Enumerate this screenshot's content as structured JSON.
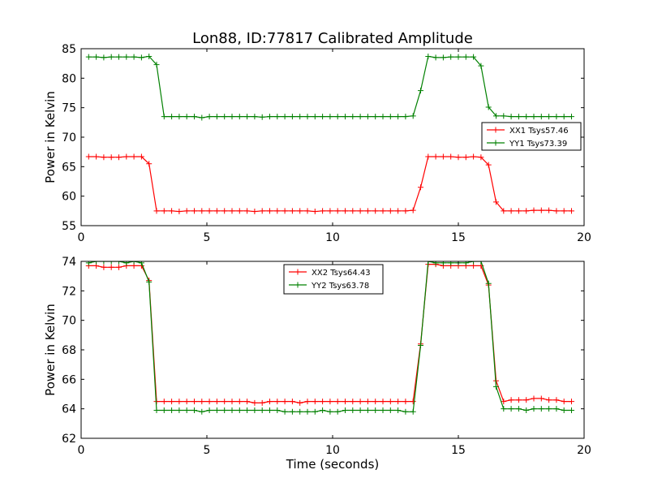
{
  "chart_data": [
    {
      "type": "line",
      "title": "Lon88, ID:77817 Calibrated Amplitude",
      "xlabel": "",
      "ylabel": "Power in Kelvin",
      "xlim": [
        0,
        20
      ],
      "ylim": [
        55,
        85
      ],
      "xticks": [
        "0",
        "5",
        "10",
        "15",
        "20"
      ],
      "yticks": [
        "55",
        "60",
        "65",
        "70",
        "75",
        "80",
        "85"
      ],
      "grid": false,
      "legend_position": "center-right",
      "x": [
        0.3,
        0.6,
        0.9,
        1.2,
        1.5,
        1.8,
        2.1,
        2.4,
        2.7,
        3.0,
        3.3,
        3.6,
        3.9,
        4.2,
        4.5,
        4.8,
        5.1,
        5.4,
        5.7,
        6.0,
        6.3,
        6.6,
        6.9,
        7.2,
        7.5,
        7.8,
        8.1,
        8.4,
        8.7,
        9.0,
        9.3,
        9.6,
        9.9,
        10.2,
        10.5,
        10.8,
        11.1,
        11.4,
        11.7,
        12.0,
        12.3,
        12.6,
        12.9,
        13.2,
        13.5,
        13.8,
        14.1,
        14.4,
        14.7,
        15.0,
        15.3,
        15.6,
        15.9,
        16.2,
        16.5,
        16.8,
        17.1,
        17.4,
        17.7,
        18.0,
        18.3,
        18.6,
        18.9,
        19.2,
        19.5
      ],
      "series": [
        {
          "name": "XX1 Tsys57.46",
          "color": "#ff0000",
          "values": [
            66.7,
            66.7,
            66.6,
            66.6,
            66.6,
            66.7,
            66.7,
            66.7,
            65.5,
            57.5,
            57.5,
            57.5,
            57.4,
            57.5,
            57.5,
            57.5,
            57.5,
            57.5,
            57.5,
            57.5,
            57.5,
            57.5,
            57.4,
            57.5,
            57.5,
            57.5,
            57.5,
            57.5,
            57.5,
            57.5,
            57.4,
            57.5,
            57.5,
            57.5,
            57.5,
            57.5,
            57.5,
            57.5,
            57.5,
            57.5,
            57.5,
            57.5,
            57.5,
            57.6,
            61.5,
            66.7,
            66.7,
            66.7,
            66.7,
            66.6,
            66.6,
            66.7,
            66.6,
            65.3,
            59.0,
            57.5,
            57.5,
            57.5,
            57.5,
            57.6,
            57.6,
            57.6,
            57.5,
            57.5,
            57.5
          ]
        },
        {
          "name": "YY1 Tsys73.39",
          "color": "#008000",
          "values": [
            83.6,
            83.6,
            83.5,
            83.6,
            83.6,
            83.6,
            83.6,
            83.5,
            83.7,
            82.3,
            73.5,
            73.5,
            73.5,
            73.5,
            73.5,
            73.3,
            73.5,
            73.5,
            73.5,
            73.5,
            73.5,
            73.5,
            73.5,
            73.4,
            73.5,
            73.5,
            73.5,
            73.5,
            73.5,
            73.5,
            73.5,
            73.5,
            73.5,
            73.5,
            73.5,
            73.5,
            73.5,
            73.5,
            73.5,
            73.5,
            73.5,
            73.5,
            73.5,
            73.6,
            77.9,
            83.7,
            83.5,
            83.5,
            83.6,
            83.6,
            83.6,
            83.6,
            82.1,
            75.1,
            73.6,
            73.6,
            73.5,
            73.5,
            73.5,
            73.5,
            73.5,
            73.5,
            73.5,
            73.5,
            73.5
          ]
        }
      ]
    },
    {
      "type": "line",
      "title": "",
      "xlabel": "Time (seconds)",
      "ylabel": "Power in Kelvin",
      "xlim": [
        0,
        20
      ],
      "ylim": [
        62,
        74
      ],
      "xticks": [
        "0",
        "5",
        "10",
        "15",
        "20"
      ],
      "yticks": [
        "62",
        "64",
        "66",
        "68",
        "70",
        "72",
        "74"
      ],
      "grid": false,
      "legend_position": "top-center",
      "x": [
        0.3,
        0.6,
        0.9,
        1.2,
        1.5,
        1.8,
        2.1,
        2.4,
        2.7,
        3.0,
        3.3,
        3.6,
        3.9,
        4.2,
        4.5,
        4.8,
        5.1,
        5.4,
        5.7,
        6.0,
        6.3,
        6.6,
        6.9,
        7.2,
        7.5,
        7.8,
        8.1,
        8.4,
        8.7,
        9.0,
        9.3,
        9.6,
        9.9,
        10.2,
        10.5,
        10.8,
        11.1,
        11.4,
        11.7,
        12.0,
        12.3,
        12.6,
        12.9,
        13.2,
        13.5,
        13.8,
        14.1,
        14.4,
        14.7,
        15.0,
        15.3,
        15.6,
        15.9,
        16.2,
        16.5,
        16.8,
        17.1,
        17.4,
        17.7,
        18.0,
        18.3,
        18.6,
        18.9,
        19.2,
        19.5
      ],
      "series": [
        {
          "name": "XX2 Tsys64.43",
          "color": "#ff0000",
          "values": [
            73.7,
            73.7,
            73.6,
            73.6,
            73.6,
            73.7,
            73.7,
            73.7,
            72.7,
            64.5,
            64.5,
            64.5,
            64.5,
            64.5,
            64.5,
            64.5,
            64.5,
            64.5,
            64.5,
            64.5,
            64.5,
            64.5,
            64.4,
            64.4,
            64.5,
            64.5,
            64.5,
            64.5,
            64.4,
            64.5,
            64.5,
            64.5,
            64.5,
            64.5,
            64.5,
            64.5,
            64.5,
            64.5,
            64.5,
            64.5,
            64.5,
            64.5,
            64.5,
            64.5,
            68.4,
            73.8,
            73.8,
            73.7,
            73.7,
            73.7,
            73.7,
            73.7,
            73.7,
            72.4,
            65.9,
            64.5,
            64.6,
            64.6,
            64.6,
            64.7,
            64.7,
            64.6,
            64.6,
            64.5,
            64.5
          ]
        },
        {
          "name": "YY2 Tsys63.78",
          "color": "#008000",
          "values": [
            73.9,
            74.0,
            74.0,
            74.0,
            74.0,
            73.9,
            74.0,
            73.9,
            72.6,
            63.9,
            63.9,
            63.9,
            63.9,
            63.9,
            63.9,
            63.8,
            63.9,
            63.9,
            63.9,
            63.9,
            63.9,
            63.9,
            63.9,
            63.9,
            63.9,
            63.9,
            63.8,
            63.8,
            63.8,
            63.8,
            63.8,
            63.9,
            63.8,
            63.8,
            63.9,
            63.9,
            63.9,
            63.9,
            63.9,
            63.9,
            63.9,
            63.9,
            63.8,
            63.8,
            68.3,
            74.0,
            73.9,
            73.9,
            73.9,
            73.9,
            73.9,
            74.0,
            74.0,
            72.5,
            65.5,
            64.0,
            64.0,
            64.0,
            63.9,
            64.0,
            64.0,
            64.0,
            64.0,
            63.9,
            63.9
          ]
        }
      ]
    }
  ]
}
